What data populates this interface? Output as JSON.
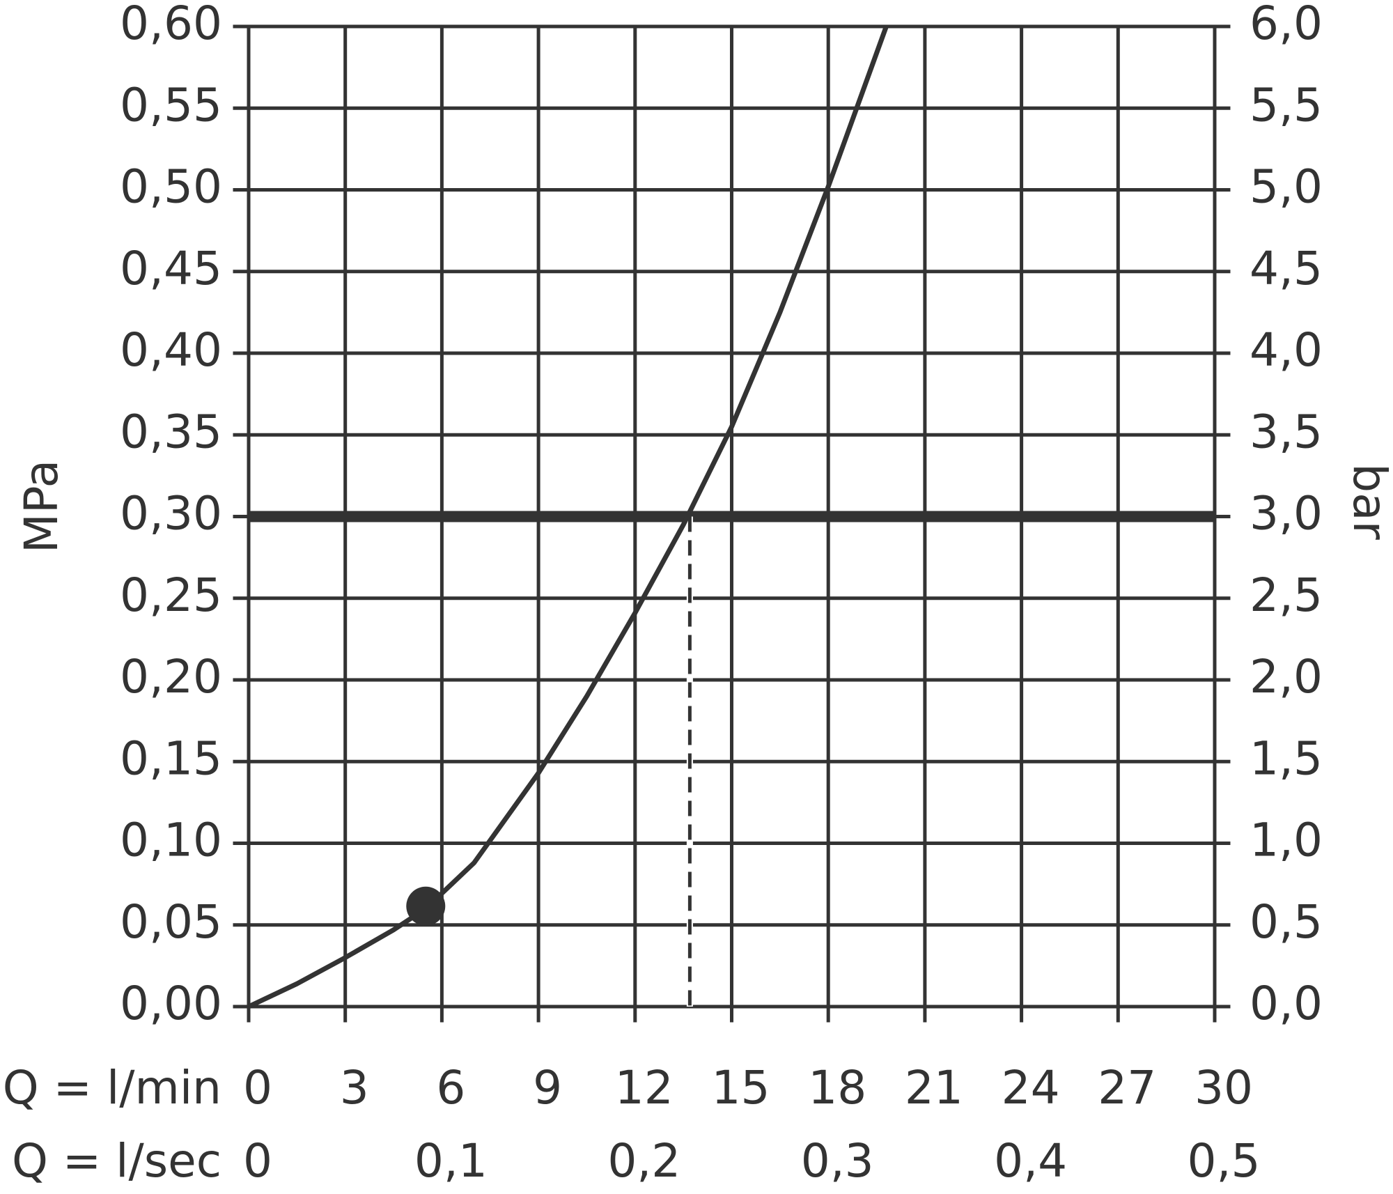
{
  "chart_data": {
    "type": "line",
    "x_label": "Q = l/min",
    "x2_label": "Q = l/sec",
    "y_label": "MPa",
    "y2_label": "bar",
    "x": [
      0,
      1.5,
      3,
      4.5,
      5.5,
      7,
      9,
      10.5,
      12,
      13.5,
      15,
      16.5,
      18,
      19.8
    ],
    "values": [
      0,
      0.014,
      0.03,
      0.047,
      0.06,
      0.088,
      0.143,
      0.19,
      0.241,
      0.295,
      0.355,
      0.425,
      0.502,
      0.6
    ],
    "color": "#333333",
    "marker": {
      "x": 5.5,
      "y": 0.0615
    },
    "reference_y": 0.3,
    "reference_x": 13.7,
    "xlim": [
      0,
      30
    ],
    "xticks": [
      0,
      3,
      6,
      9,
      12,
      15,
      18,
      21,
      24,
      27,
      30
    ],
    "x2lim": [
      0,
      0.5
    ],
    "x2ticks": [
      0,
      {
        "value": 0.1,
        "label": "0,1"
      },
      {
        "value": 0.2,
        "label": "0,2"
      },
      {
        "value": 0.3,
        "label": "0,3"
      },
      {
        "value": 0.4,
        "label": "0,4"
      },
      {
        "value": 0.5,
        "label": "0,5"
      }
    ],
    "ylim": [
      0,
      0.6
    ],
    "yticks": [
      {
        "value": 0,
        "label": "0,00"
      },
      {
        "value": 0.05,
        "label": "0,05"
      },
      {
        "value": 0.1,
        "label": "0,10"
      },
      {
        "value": 0.15,
        "label": "0,15"
      },
      {
        "value": 0.2,
        "label": "0,20"
      },
      {
        "value": 0.25,
        "label": "0,25"
      },
      {
        "value": 0.3,
        "label": "0,30"
      },
      {
        "value": 0.35,
        "label": "0,35"
      },
      {
        "value": 0.4,
        "label": "0,40"
      },
      {
        "value": 0.45,
        "label": "0,45"
      },
      {
        "value": 0.5,
        "label": "0,50"
      },
      {
        "value": 0.55,
        "label": "0,55"
      },
      {
        "value": 0.6,
        "label": "0,60"
      }
    ],
    "y2lim": [
      0,
      6
    ],
    "y2ticks": [
      {
        "value": 0,
        "label": "0,0"
      },
      {
        "value": 0.5,
        "label": "0,5"
      },
      {
        "value": 1,
        "label": "1,0"
      },
      {
        "value": 1.5,
        "label": "1,5"
      },
      {
        "value": 2,
        "label": "2,0"
      },
      {
        "value": 2.5,
        "label": "2,5"
      },
      {
        "value": 3,
        "label": "3,0"
      },
      {
        "value": 3.5,
        "label": "3,5"
      },
      {
        "value": 4,
        "label": "4,0"
      },
      {
        "value": 4.5,
        "label": "4,5"
      },
      {
        "value": 5,
        "label": "5,0"
      },
      {
        "value": 5.5,
        "label": "5,5"
      },
      {
        "value": 6,
        "label": "6,0"
      }
    ],
    "grid": true
  }
}
